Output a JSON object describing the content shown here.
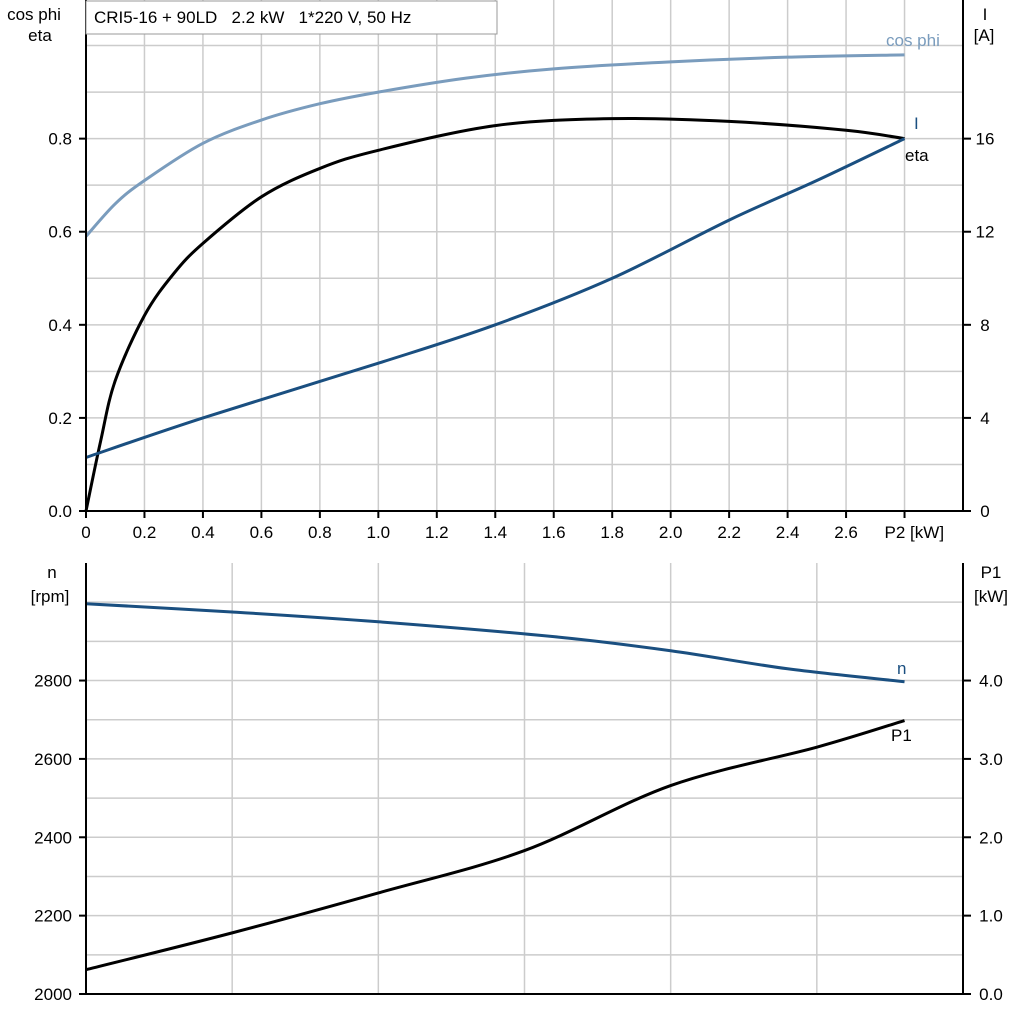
{
  "chart_data": [
    {
      "type": "line",
      "title": "CRI5-16 + 90LD   2.2 kW   1*220 V, 50 Hz",
      "xlabel": "P2 [kW]",
      "ylabel_left": [
        "cos phi",
        "eta"
      ],
      "ylabel_right": [
        "I",
        "[A]"
      ],
      "xlim": [
        0,
        3.0
      ],
      "ylim_left": [
        0,
        1.1
      ],
      "ylim_right": [
        0,
        22
      ],
      "x_ticks": [
        "0",
        "0.2",
        "0.4",
        "0.6",
        "0.8",
        "1.0",
        "1.2",
        "1.4",
        "1.6",
        "1.8",
        "2.0",
        "2.2",
        "2.4",
        "2.6",
        "P2 [kW]"
      ],
      "y_ticks_left": [
        "0.0",
        "0.2",
        "0.4",
        "0.6",
        "0.8"
      ],
      "y_ticks_right": [
        "0",
        "4",
        "8",
        "12",
        "16"
      ],
      "grid": true,
      "series": [
        {
          "name": "cos phi",
          "axis": "left",
          "color": "#7a9cbd",
          "x": [
            0,
            0.1,
            0.2,
            0.4,
            0.6,
            0.8,
            1.0,
            1.3,
            1.6,
            2.0,
            2.4,
            2.8
          ],
          "y": [
            0.59,
            0.66,
            0.71,
            0.79,
            0.84,
            0.875,
            0.9,
            0.93,
            0.95,
            0.965,
            0.975,
            0.98
          ]
        },
        {
          "name": "eta",
          "axis": "left",
          "color": "#000000",
          "x": [
            0,
            0.05,
            0.1,
            0.2,
            0.3,
            0.4,
            0.6,
            0.8,
            1.0,
            1.4,
            1.8,
            2.2,
            2.6,
            2.8
          ],
          "y": [
            0,
            0.15,
            0.28,
            0.42,
            0.51,
            0.575,
            0.675,
            0.736,
            0.775,
            0.828,
            0.843,
            0.837,
            0.818,
            0.8
          ]
        },
        {
          "name": "I",
          "axis": "right",
          "color": "#1a4f80",
          "x": [
            0,
            0.4,
            1.0,
            1.4,
            1.8,
            2.2,
            2.5,
            2.8
          ],
          "y": [
            2.3,
            4.0,
            6.35,
            8.0,
            10.0,
            12.5,
            14.2,
            16.0
          ]
        }
      ]
    },
    {
      "type": "line",
      "xlim": [
        0,
        3.0
      ],
      "ylabel_left": [
        "n",
        "[rpm]"
      ],
      "ylabel_right": [
        "P1",
        "[kW]"
      ],
      "ylim_left": [
        2000,
        3100
      ],
      "ylim_right": [
        0,
        5.5
      ],
      "y_ticks_left": [
        "2000",
        "2200",
        "2400",
        "2600",
        "2800"
      ],
      "y_ticks_right": [
        "0.0",
        "1.0",
        "2.0",
        "3.0",
        "4.0"
      ],
      "grid": true,
      "series": [
        {
          "name": "n",
          "axis": "left",
          "color": "#1a4f80",
          "x": [
            0,
            0.5,
            1.0,
            1.6,
            2.0,
            2.4,
            2.8
          ],
          "y": [
            2996,
            2975,
            2950,
            2912,
            2876,
            2830,
            2797
          ]
        },
        {
          "name": "P1",
          "axis": "right",
          "color": "#000000",
          "x": [
            0,
            0.5,
            1.0,
            1.5,
            2.0,
            2.5,
            2.8
          ],
          "y": [
            0.31,
            0.78,
            1.29,
            1.83,
            2.66,
            3.15,
            3.49
          ]
        }
      ]
    }
  ]
}
